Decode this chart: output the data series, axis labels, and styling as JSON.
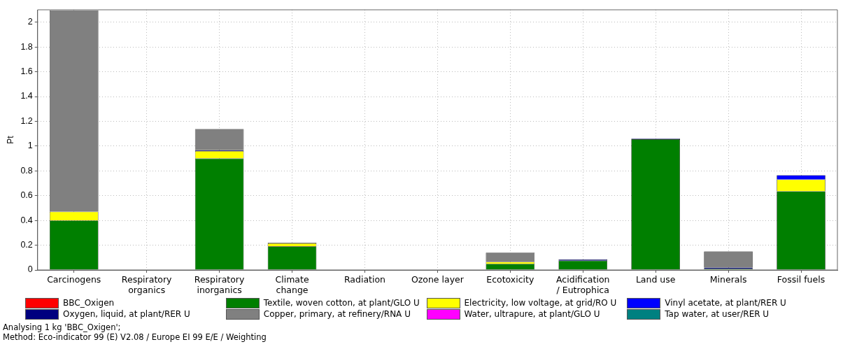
{
  "chart_data": {
    "type": "bar",
    "stacked": true,
    "ylabel": "Pt",
    "categories": [
      "Carcinogens",
      "Respiratory\norganics",
      "Respiratory\ninorganics",
      "Climate\nchange",
      "Radiation",
      "Ozone layer",
      "Ecotoxicity",
      "Acidification\n/ Eutrophica",
      "Land use",
      "Minerals",
      "Fossil fuels"
    ],
    "series": [
      {
        "name": "BBC_Oxigen",
        "color": "#ff0000",
        "values": [
          0,
          0,
          0,
          0,
          0,
          0,
          0,
          0,
          0,
          0,
          0
        ]
      },
      {
        "name": "Textile, woven cotton, at plant/GLO U",
        "color": "#007f00",
        "values": [
          0.4,
          0,
          0.9,
          0.19,
          0,
          0,
          0.05,
          0.075,
          1.055,
          0.01,
          0.635
        ]
      },
      {
        "name": "Electricity, low voltage, at grid/RO U",
        "color": "#ffff00",
        "values": [
          0.07,
          0,
          0.06,
          0.025,
          0,
          0,
          0.015,
          0,
          0,
          0,
          0.095
        ]
      },
      {
        "name": "Vinyl acetate, at plant/RER U",
        "color": "#0000ff",
        "values": [
          0,
          0,
          0,
          0,
          0,
          0,
          0,
          0,
          0.005,
          0,
          0.035
        ]
      },
      {
        "name": "Oxygen, liquid, at plant/RER U",
        "color": "#00007f",
        "values": [
          null,
          0,
          0.008,
          0,
          0,
          0,
          null,
          0.01,
          0,
          0.01,
          0
        ]
      },
      {
        "name": "Copper, primary, at refinery/RNA U",
        "color": "#808080",
        "values": [
          1.625,
          0,
          0.17,
          0.005,
          0,
          0,
          0.075,
          0,
          0,
          0.13,
          0
        ]
      },
      {
        "name": "Water, ultrapure, at plant/GLO U",
        "color": "#ff00ff",
        "values": [
          0,
          0,
          0,
          0,
          0,
          0,
          0,
          0,
          0,
          0,
          0
        ]
      },
      {
        "name": "Tap water, at user/RER U",
        "color": "#008080",
        "values": [
          0,
          0,
          0,
          0,
          0,
          0,
          0,
          0,
          0,
          0,
          0
        ]
      }
    ],
    "ylim": [
      0,
      2.1
    ],
    "yticks": [
      0,
      0.2,
      0.4,
      0.6,
      0.8,
      1,
      1.2,
      1.4,
      1.6,
      1.8,
      2
    ],
    "grid": true,
    "legend": "bottom",
    "annotations": [
      "Analysing 1 kg 'BBC_Oxigen';",
      "Method: Eco-indicator 99 (E) V2.08 / Europe EI 99 E/E / Weighting"
    ]
  }
}
